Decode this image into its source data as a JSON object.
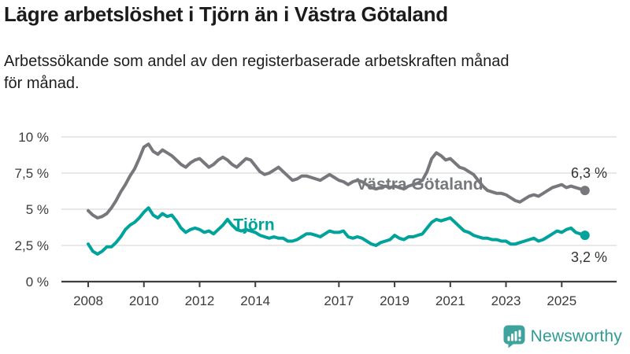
{
  "header": {
    "title": "Lägre arbetslöshet i Tjörn än i Västra Götaland",
    "subtitle_line1": "Arbetssökande som andel av den registerbaserade arbetskraften månad",
    "subtitle_line2": "för månad."
  },
  "footer": {
    "brand": "Newsworthy",
    "brand_color": "#2e9b95",
    "icon_color": "#3fa39d"
  },
  "colors": {
    "grid": "#dadada",
    "axis": "#3f3f3f",
    "tick_text": "#3b3b3b",
    "end_label_text": "#333333"
  },
  "chart_data": {
    "type": "line",
    "title": "Lägre arbetslöshet i Tjörn än i Västra Götaland",
    "subtitle": "Arbetssökande som andel av den registerbaserade arbetskraften månad för månad.",
    "x_axis": {
      "start": 2008,
      "end": 2025.83,
      "ticks": [
        2008,
        2010,
        2012,
        2014,
        2017,
        2019,
        2021,
        2023,
        2025
      ],
      "tick_labels": [
        "2008",
        "2010",
        "2012",
        "2014",
        "2017",
        "2019",
        "2021",
        "2023",
        "2025"
      ]
    },
    "y_axis": {
      "ticks": [
        0,
        2.5,
        5,
        7.5,
        10
      ],
      "tick_labels": [
        "0 %",
        "2,5 %",
        "5 %",
        "7,5 %",
        "10 %"
      ],
      "range": [
        0,
        10
      ],
      "grid": true,
      "unit": "percent of registered workforce"
    },
    "legend_position": "inline-labels",
    "series": [
      {
        "name": "Västra Götaland",
        "color": "#77787c",
        "start_year": 2008,
        "step_months": 2,
        "end_label": "6,3 %",
        "end_label_side": "above",
        "label_anchor": {
          "year": 2019.9,
          "value": 6.75
        },
        "values": [
          4.9,
          4.6,
          4.4,
          4.5,
          4.7,
          5.1,
          5.6,
          6.2,
          6.7,
          7.3,
          7.8,
          8.5,
          9.3,
          9.5,
          9.0,
          8.8,
          9.1,
          8.9,
          8.7,
          8.4,
          8.1,
          7.9,
          8.2,
          8.4,
          8.5,
          8.2,
          7.9,
          8.1,
          8.4,
          8.6,
          8.4,
          8.1,
          7.9,
          8.2,
          8.5,
          8.4,
          8.0,
          7.6,
          7.4,
          7.5,
          7.7,
          7.9,
          7.6,
          7.3,
          7.0,
          7.1,
          7.3,
          7.3,
          7.2,
          7.1,
          7.0,
          7.2,
          7.4,
          7.2,
          7.0,
          6.9,
          6.7,
          6.9,
          7.0,
          6.9,
          6.7,
          6.5,
          6.4,
          6.5,
          6.6,
          6.5,
          6.6,
          6.5,
          6.4,
          6.6,
          6.7,
          6.8,
          7.0,
          7.6,
          8.5,
          8.9,
          8.7,
          8.4,
          8.5,
          8.2,
          7.9,
          7.8,
          7.6,
          7.4,
          7.0,
          6.6,
          6.3,
          6.2,
          6.1,
          6.1,
          6.0,
          5.8,
          5.6,
          5.5,
          5.7,
          5.9,
          6.0,
          5.9,
          6.1,
          6.3,
          6.5,
          6.6,
          6.7,
          6.5,
          6.6,
          6.5,
          6.4,
          6.3
        ]
      },
      {
        "name": "Tjörn",
        "color": "#00a39b",
        "start_year": 2008,
        "step_months": 2,
        "end_label": "3,2 %",
        "end_label_side": "below",
        "label_anchor": {
          "year": 2013.95,
          "value": 3.95
        },
        "values": [
          2.6,
          2.1,
          1.9,
          2.1,
          2.4,
          2.4,
          2.7,
          3.1,
          3.6,
          3.9,
          4.1,
          4.4,
          4.8,
          5.1,
          4.6,
          4.4,
          4.7,
          4.5,
          4.6,
          4.2,
          3.7,
          3.4,
          3.6,
          3.7,
          3.6,
          3.4,
          3.5,
          3.3,
          3.6,
          3.9,
          4.3,
          3.9,
          3.6,
          3.5,
          3.6,
          3.5,
          3.4,
          3.2,
          3.1,
          3.0,
          3.1,
          3.0,
          3.0,
          2.8,
          2.8,
          2.9,
          3.1,
          3.3,
          3.3,
          3.2,
          3.1,
          3.3,
          3.5,
          3.4,
          3.4,
          3.5,
          3.1,
          3.0,
          3.1,
          3.0,
          2.8,
          2.6,
          2.5,
          2.7,
          2.8,
          2.9,
          3.2,
          3.0,
          2.9,
          3.1,
          3.1,
          3.2,
          3.3,
          3.7,
          4.1,
          4.3,
          4.2,
          4.3,
          4.4,
          4.1,
          3.8,
          3.5,
          3.4,
          3.2,
          3.1,
          3.0,
          3.0,
          2.9,
          2.9,
          2.8,
          2.8,
          2.6,
          2.6,
          2.7,
          2.8,
          2.9,
          3.0,
          2.8,
          2.9,
          3.1,
          3.3,
          3.5,
          3.4,
          3.6,
          3.7,
          3.4,
          3.3,
          3.2
        ]
      }
    ]
  }
}
